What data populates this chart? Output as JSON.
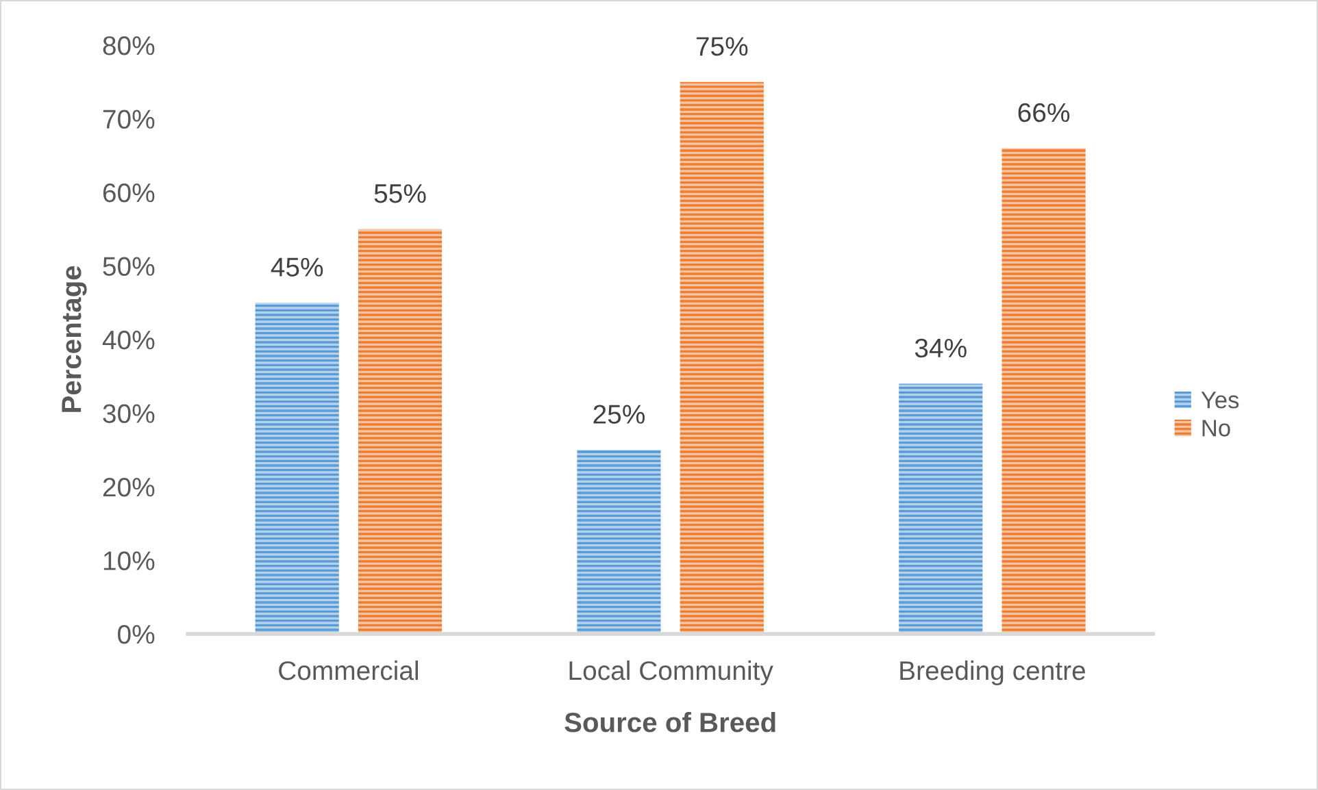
{
  "chart_data": {
    "type": "bar",
    "xlabel": "Source of Breed",
    "ylabel": "Percentage",
    "categories": [
      "Commercial",
      "Local Community",
      "Breeding centre"
    ],
    "series": [
      {
        "name": "Yes",
        "color": "#5b9bd5",
        "values": [
          45,
          25,
          34
        ],
        "value_labels": [
          "45%",
          "25%",
          "34%"
        ]
      },
      {
        "name": "No",
        "color": "#ed7d31",
        "values": [
          55,
          75,
          66
        ],
        "value_labels": [
          "55%",
          "75%",
          "66%"
        ]
      }
    ],
    "ylim": [
      0,
      80
    ],
    "yticks": [
      {
        "value": 0,
        "label": "0%"
      },
      {
        "value": 10,
        "label": "10%"
      },
      {
        "value": 20,
        "label": "20%"
      },
      {
        "value": 30,
        "label": "30%"
      },
      {
        "value": 40,
        "label": "40%"
      },
      {
        "value": 50,
        "label": "50%"
      },
      {
        "value": 60,
        "label": "60%"
      },
      {
        "value": 70,
        "label": "70%"
      },
      {
        "value": 80,
        "label": "80%"
      }
    ],
    "legend": "right"
  }
}
